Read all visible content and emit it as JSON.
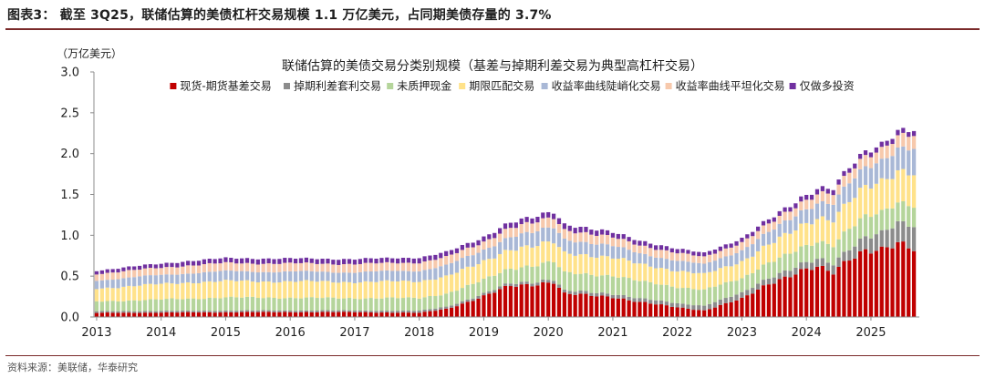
{
  "figure_title": "图表3：  截至 3Q25，联储估算的美债杠杆交易规模 1.1 万亿美元，占同期美债存量的 3.7%",
  "source_note": "资料来源：美联储，华泰研究",
  "chart_data": {
    "type": "bar",
    "stacked": true,
    "title": "联储估算的美债交易分类别规模（基差与掉期利差交易为典型高杠杆交易）",
    "ylabel": "（万亿美元）",
    "xlabel": "",
    "ylim": [
      0,
      3.0
    ],
    "yticks": [
      "0.0",
      "0.5",
      "1.0",
      "1.5",
      "2.0",
      "2.5",
      "3.0"
    ],
    "x_tick_labels": [
      "2013",
      "2014",
      "2015",
      "2016",
      "2017",
      "2018",
      "2019",
      "2020",
      "2021",
      "2022",
      "2023",
      "2024",
      "2025"
    ],
    "x_start": "2013-01",
    "x_end": "2025-09",
    "frequency": "monthly",
    "grid": false,
    "legend_position": "top",
    "series": [
      {
        "name": "现货-期货基差交易",
        "color": "#c00000",
        "anchors": [
          [
            "2013-01",
            0.05
          ],
          [
            "2015-06",
            0.06
          ],
          [
            "2017-01",
            0.06
          ],
          [
            "2018-01",
            0.05
          ],
          [
            "2018-06",
            0.1
          ],
          [
            "2019-01",
            0.25
          ],
          [
            "2019-06",
            0.38
          ],
          [
            "2020-02",
            0.43
          ],
          [
            "2020-04",
            0.28
          ],
          [
            "2021-01",
            0.25
          ],
          [
            "2021-06",
            0.18
          ],
          [
            "2022-01",
            0.12
          ],
          [
            "2022-06",
            0.08
          ],
          [
            "2023-01",
            0.22
          ],
          [
            "2023-06",
            0.42
          ],
          [
            "2023-12",
            0.55
          ],
          [
            "2024-03",
            0.6
          ],
          [
            "2024-06",
            0.55
          ],
          [
            "2024-09",
            0.74
          ],
          [
            "2024-12",
            0.82
          ],
          [
            "2025-03",
            0.8
          ],
          [
            "2025-06",
            0.88
          ],
          [
            "2025-09",
            0.85
          ]
        ]
      },
      {
        "name": "掉期利差套利交易",
        "color": "#8c8c8c",
        "anchors": [
          [
            "2013-01",
            0.02
          ],
          [
            "2017-01",
            0.02
          ],
          [
            "2019-01",
            0.03
          ],
          [
            "2021-01",
            0.04
          ],
          [
            "2022-01",
            0.05
          ],
          [
            "2023-01",
            0.07
          ],
          [
            "2024-01",
            0.08
          ],
          [
            "2024-09",
            0.13
          ],
          [
            "2025-03",
            0.2
          ],
          [
            "2025-06",
            0.25
          ],
          [
            "2025-09",
            0.29
          ]
        ]
      },
      {
        "name": "未质押现金",
        "color": "#b5d59b",
        "anchors": [
          [
            "2013-01",
            0.12
          ],
          [
            "2015-01",
            0.16
          ],
          [
            "2017-01",
            0.15
          ],
          [
            "2018-06",
            0.16
          ],
          [
            "2019-06",
            0.18
          ],
          [
            "2020-03",
            0.22
          ],
          [
            "2021-01",
            0.22
          ],
          [
            "2022-01",
            0.2
          ],
          [
            "2023-01",
            0.18
          ],
          [
            "2024-01",
            0.2
          ],
          [
            "2024-09",
            0.25
          ],
          [
            "2025-09",
            0.25
          ]
        ]
      },
      {
        "name": "期限匹配交易",
        "color": "#ffe28a",
        "anchors": [
          [
            "2013-01",
            0.16
          ],
          [
            "2014-06",
            0.2
          ],
          [
            "2016-01",
            0.2
          ],
          [
            "2017-06",
            0.2
          ],
          [
            "2019-01",
            0.22
          ],
          [
            "2019-06",
            0.24
          ],
          [
            "2020-06",
            0.24
          ],
          [
            "2021-06",
            0.21
          ],
          [
            "2022-06",
            0.19
          ],
          [
            "2023-06",
            0.22
          ],
          [
            "2024-01",
            0.28
          ],
          [
            "2024-09",
            0.33
          ],
          [
            "2025-03",
            0.38
          ],
          [
            "2025-09",
            0.4
          ]
        ]
      },
      {
        "name": "收益率曲线陡峭化交易",
        "color": "#a9b8d6",
        "anchors": [
          [
            "2013-01",
            0.1
          ],
          [
            "2015-01",
            0.12
          ],
          [
            "2017-01",
            0.12
          ],
          [
            "2019-01",
            0.14
          ],
          [
            "2020-02",
            0.18
          ],
          [
            "2020-06",
            0.16
          ],
          [
            "2021-06",
            0.13
          ],
          [
            "2022-06",
            0.12
          ],
          [
            "2023-06",
            0.15
          ],
          [
            "2024-06",
            0.2
          ],
          [
            "2025-03",
            0.26
          ],
          [
            "2025-09",
            0.3
          ]
        ]
      },
      {
        "name": "收益率曲线平坦化交易",
        "color": "#f7c9ac",
        "anchors": [
          [
            "2013-01",
            0.08
          ],
          [
            "2015-01",
            0.1
          ],
          [
            "2017-01",
            0.1
          ],
          [
            "2019-01",
            0.1
          ],
          [
            "2020-01",
            0.12
          ],
          [
            "2021-06",
            0.1
          ],
          [
            "2022-06",
            0.09
          ],
          [
            "2023-06",
            0.1
          ],
          [
            "2024-06",
            0.12
          ],
          [
            "2025-09",
            0.16
          ]
        ]
      },
      {
        "name": "仅做多投资",
        "color": "#7030a0",
        "anchors": [
          [
            "2013-01",
            0.04
          ],
          [
            "2015-01",
            0.06
          ],
          [
            "2017-01",
            0.06
          ],
          [
            "2019-01",
            0.06
          ],
          [
            "2020-01",
            0.07
          ],
          [
            "2021-01",
            0.06
          ],
          [
            "2022-01",
            0.05
          ],
          [
            "2023-01",
            0.05
          ],
          [
            "2024-01",
            0.06
          ],
          [
            "2024-09",
            0.06
          ],
          [
            "2025-09",
            0.06
          ]
        ]
      }
    ]
  }
}
